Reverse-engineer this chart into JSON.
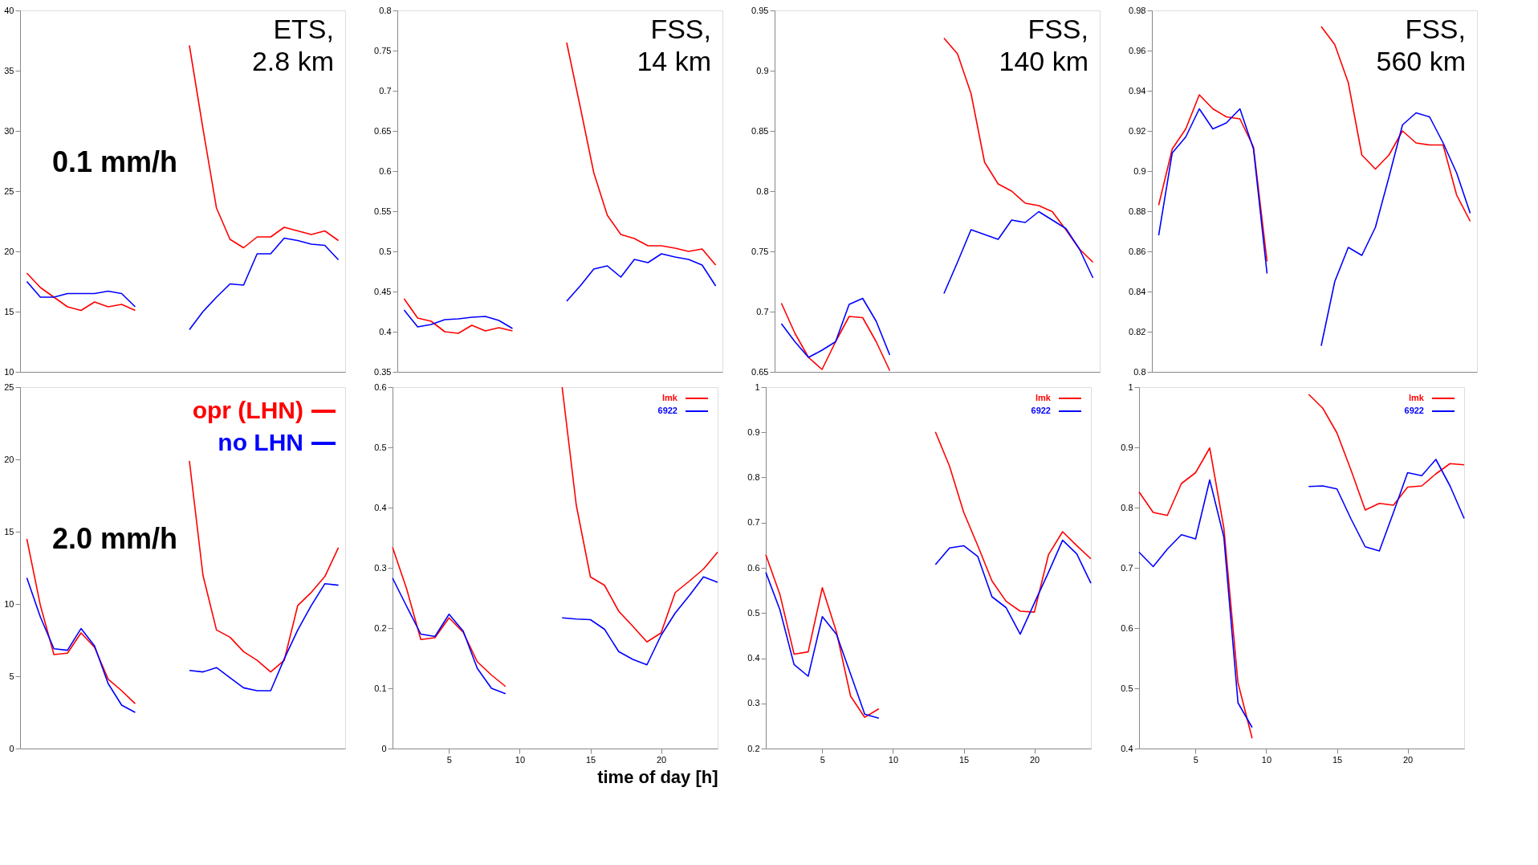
{
  "chart_data": [
    {
      "type": "line",
      "title": "ETS,\n2.8 km",
      "annotations": [
        "0.1 mm/h"
      ],
      "categories": [
        null,
        null,
        null,
        null,
        null,
        null,
        null,
        null,
        null,
        null,
        null,
        null,
        null,
        null,
        null,
        null,
        null,
        null,
        null,
        null,
        null,
        null,
        null,
        null
      ],
      "ylim": [
        10,
        40
      ],
      "yticks": [
        10,
        15,
        20,
        25,
        30,
        35,
        40
      ],
      "tick_labels": "y",
      "grid": false,
      "legend": false,
      "series": [
        {
          "color": "#ff0000",
          "values": [
            18.2,
            17.0,
            16.2,
            15.4,
            15.1,
            15.8,
            15.4,
            15.6,
            15.1,
            null,
            null,
            null,
            null,
            null,
            null,
            null,
            null,
            null,
            null,
            null,
            null,
            null,
            null,
            null
          ]
        },
        {
          "color": "#ff0000",
          "values": [
            null,
            null,
            null,
            null,
            null,
            null,
            null,
            null,
            null,
            null,
            null,
            null,
            37.1,
            30.2,
            23.6,
            21.0,
            20.3,
            21.2,
            21.2,
            22.0,
            21.7,
            21.4,
            21.7,
            20.9
          ]
        },
        {
          "color": "#0000ff",
          "values": [
            17.5,
            16.2,
            16.2,
            16.5,
            16.5,
            16.5,
            16.7,
            16.5,
            15.4,
            null,
            null,
            null,
            null,
            null,
            null,
            null,
            null,
            null,
            null,
            null,
            null,
            null,
            null,
            null
          ]
        },
        {
          "color": "#0000ff",
          "values": [
            null,
            null,
            null,
            null,
            null,
            null,
            null,
            null,
            null,
            null,
            null,
            null,
            13.5,
            15.0,
            16.2,
            17.3,
            17.2,
            19.8,
            19.8,
            21.1,
            20.9,
            20.6,
            20.5,
            19.3
          ]
        }
      ]
    },
    {
      "type": "line",
      "title": "FSS,\n14 km",
      "categories": [
        null,
        null,
        null,
        null,
        null,
        null,
        null,
        null,
        null,
        null,
        null,
        null,
        null,
        null,
        null,
        null,
        null,
        null,
        null,
        null,
        null,
        null,
        null,
        null
      ],
      "ylim": [
        0.35,
        0.8
      ],
      "yticks": [
        0.35,
        0.4,
        0.45,
        0.5,
        0.55,
        0.6,
        0.65,
        0.7,
        0.75,
        0.8
      ],
      "tick_labels": "y",
      "grid": false,
      "legend": false,
      "series": [
        {
          "color": "#ff0000",
          "values": [
            0.441,
            0.417,
            0.413,
            0.4,
            0.398,
            0.408,
            0.401,
            0.405,
            0.401,
            null,
            null,
            null,
            null,
            null,
            null,
            null,
            null,
            null,
            null,
            null,
            null,
            null,
            null,
            null
          ]
        },
        {
          "color": "#ff0000",
          "values": [
            null,
            null,
            null,
            null,
            null,
            null,
            null,
            null,
            null,
            null,
            null,
            null,
            0.76,
            0.68,
            0.598,
            0.545,
            0.521,
            0.516,
            0.507,
            0.507,
            0.504,
            0.5,
            0.503,
            0.483
          ]
        },
        {
          "color": "#0000ff",
          "values": [
            0.427,
            0.406,
            0.409,
            0.415,
            0.416,
            0.418,
            0.419,
            0.414,
            0.404,
            null,
            null,
            null,
            null,
            null,
            null,
            null,
            null,
            null,
            null,
            null,
            null,
            null,
            null,
            null
          ]
        },
        {
          "color": "#0000ff",
          "values": [
            null,
            null,
            null,
            null,
            null,
            null,
            null,
            null,
            null,
            null,
            null,
            null,
            0.438,
            0.457,
            0.478,
            0.482,
            0.468,
            0.49,
            0.486,
            0.497,
            0.493,
            0.49,
            0.483,
            0.457
          ]
        }
      ]
    },
    {
      "type": "line",
      "title": "FSS,\n140 km",
      "categories": [
        null,
        null,
        null,
        null,
        null,
        null,
        null,
        null,
        null,
        null,
        null,
        null,
        null,
        null,
        null,
        null,
        null,
        null,
        null,
        null,
        null,
        null,
        null,
        null
      ],
      "ylim": [
        0.65,
        0.95
      ],
      "yticks": [
        0.65,
        0.7,
        0.75,
        0.8,
        0.85,
        0.9,
        0.95
      ],
      "tick_labels": "y",
      "grid": false,
      "legend": false,
      "series": [
        {
          "color": "#ff0000",
          "values": [
            0.707,
            0.682,
            0.662,
            0.652,
            0.675,
            0.696,
            0.695,
            0.675,
            0.651,
            null,
            null,
            null,
            null,
            null,
            null,
            null,
            null,
            null,
            null,
            null,
            null,
            null,
            null,
            null
          ]
        },
        {
          "color": "#ff0000",
          "values": [
            null,
            null,
            null,
            null,
            null,
            null,
            null,
            null,
            null,
            null,
            null,
            null,
            0.927,
            0.914,
            0.881,
            0.824,
            0.806,
            0.8,
            0.79,
            0.788,
            0.783,
            0.768,
            0.752,
            0.741
          ]
        },
        {
          "color": "#0000ff",
          "values": [
            0.69,
            0.675,
            0.662,
            0.668,
            0.675,
            0.706,
            0.711,
            0.692,
            0.664,
            null,
            null,
            null,
            null,
            null,
            null,
            null,
            null,
            null,
            null,
            null,
            null,
            null,
            null,
            null
          ]
        },
        {
          "color": "#0000ff",
          "values": [
            null,
            null,
            null,
            null,
            null,
            null,
            null,
            null,
            null,
            null,
            null,
            null,
            0.715,
            0.741,
            0.768,
            0.764,
            0.76,
            0.776,
            0.774,
            0.783,
            0.776,
            0.769,
            0.752,
            0.728
          ]
        }
      ]
    },
    {
      "type": "line",
      "title": "FSS,\n560 km",
      "categories": [
        null,
        null,
        null,
        null,
        null,
        null,
        null,
        null,
        null,
        null,
        null,
        null,
        null,
        null,
        null,
        null,
        null,
        null,
        null,
        null,
        null,
        null,
        null,
        null
      ],
      "ylim": [
        0.8,
        0.98
      ],
      "yticks": [
        0.8,
        0.82,
        0.84,
        0.86,
        0.88,
        0.9,
        0.92,
        0.94,
        0.96,
        0.98
      ],
      "tick_labels": "y",
      "grid": false,
      "legend": false,
      "series": [
        {
          "color": "#ff0000",
          "values": [
            0.883,
            0.911,
            0.921,
            0.938,
            0.931,
            0.927,
            0.926,
            0.912,
            0.855,
            null,
            null,
            null,
            null,
            null,
            null,
            null,
            null,
            null,
            null,
            null,
            null,
            null,
            null,
            null
          ]
        },
        {
          "color": "#ff0000",
          "values": [
            null,
            null,
            null,
            null,
            null,
            null,
            null,
            null,
            null,
            null,
            null,
            null,
            0.972,
            0.963,
            0.944,
            0.908,
            0.901,
            0.908,
            0.92,
            0.914,
            0.913,
            0.913,
            0.888,
            0.875
          ]
        },
        {
          "color": "#0000ff",
          "values": [
            0.868,
            0.909,
            0.917,
            0.931,
            0.921,
            0.924,
            0.931,
            0.911,
            0.849,
            null,
            null,
            null,
            null,
            null,
            null,
            null,
            null,
            null,
            null,
            null,
            null,
            null,
            null,
            null
          ]
        },
        {
          "color": "#0000ff",
          "values": [
            null,
            null,
            null,
            null,
            null,
            null,
            null,
            null,
            null,
            null,
            null,
            null,
            0.813,
            0.845,
            0.862,
            0.858,
            0.872,
            0.897,
            0.923,
            0.929,
            0.927,
            0.914,
            0.899,
            0.879
          ]
        }
      ]
    },
    {
      "type": "line",
      "annotations": [
        "2.0 mm/h"
      ],
      "categories": [
        null,
        null,
        null,
        null,
        null,
        null,
        null,
        null,
        null,
        null,
        null,
        null,
        null,
        null,
        null,
        null,
        null,
        null,
        null,
        null,
        null,
        null,
        null,
        null
      ],
      "ylim": [
        0,
        25
      ],
      "yticks": [
        0,
        5,
        10,
        15,
        20,
        25
      ],
      "tick_labels": "y",
      "grid": false,
      "legend": "top right",
      "series": [
        {
          "name": "opr (LHN)",
          "color": "#ff0000",
          "values": [
            14.5,
            9.9,
            6.5,
            6.6,
            8.0,
            7.0,
            4.8,
            4.0,
            3.1,
            null,
            null,
            null,
            null,
            null,
            null,
            null,
            null,
            null,
            null,
            null,
            null,
            null,
            null,
            null
          ]
        },
        {
          "color": "#ff0000",
          "values": [
            null,
            null,
            null,
            null,
            null,
            null,
            null,
            null,
            null,
            null,
            null,
            null,
            19.9,
            12.0,
            8.2,
            7.7,
            6.7,
            6.1,
            5.3,
            6.1,
            9.9,
            10.8,
            11.9,
            13.9
          ]
        },
        {
          "name": "no LHN",
          "color": "#0000ff",
          "values": [
            11.8,
            9.1,
            6.9,
            6.8,
            8.3,
            7.1,
            4.5,
            3.0,
            2.5,
            null,
            null,
            null,
            null,
            null,
            null,
            null,
            null,
            null,
            null,
            null,
            null,
            null,
            null,
            null
          ]
        },
        {
          "color": "#0000ff",
          "values": [
            null,
            null,
            null,
            null,
            null,
            null,
            null,
            null,
            null,
            null,
            null,
            null,
            5.4,
            5.3,
            5.6,
            4.9,
            4.2,
            4.0,
            4.0,
            6.2,
            8.2,
            9.9,
            11.4,
            11.3
          ]
        }
      ]
    },
    {
      "type": "line",
      "xlabel": "time of day [h]",
      "x": [
        1,
        2,
        3,
        4,
        5,
        6,
        7,
        8,
        9,
        10,
        11,
        12,
        13,
        14,
        15,
        16,
        17,
        18,
        19,
        20,
        21,
        22,
        23,
        24
      ],
      "xlim": [
        1,
        24
      ],
      "xticks": [
        5,
        10,
        15,
        20
      ],
      "ylim": [
        0,
        0.6
      ],
      "yticks": [
        0,
        0.1,
        0.2,
        0.3,
        0.4,
        0.5,
        0.6
      ],
      "grid": false,
      "legend": "top right",
      "series": [
        {
          "name": "lmk",
          "color": "#ff0000",
          "values": [
            0.334,
            0.265,
            0.181,
            0.184,
            0.217,
            0.193,
            0.144,
            0.122,
            0.103,
            null,
            null,
            null,
            0.6,
            0.404,
            0.285,
            0.271,
            0.228,
            0.203,
            0.177,
            0.192,
            0.259,
            0.278,
            0.298,
            0.326
          ]
        },
        {
          "name": "6922",
          "color": "#0000ff",
          "values": [
            0.283,
            0.236,
            0.19,
            0.186,
            0.223,
            0.195,
            0.133,
            0.1,
            0.091,
            null,
            null,
            null,
            0.217,
            0.215,
            0.214,
            0.198,
            0.161,
            0.148,
            0.139,
            0.188,
            0.225,
            0.254,
            0.285,
            0.276
          ]
        }
      ]
    },
    {
      "type": "line",
      "x": [
        1,
        2,
        3,
        4,
        5,
        6,
        7,
        8,
        9,
        10,
        11,
        12,
        13,
        14,
        15,
        16,
        17,
        18,
        19,
        20,
        21,
        22,
        23,
        24
      ],
      "xlim": [
        1,
        24
      ],
      "xticks": [
        5,
        10,
        15,
        20
      ],
      "ylim": [
        0.2,
        1
      ],
      "yticks": [
        0.2,
        0.3,
        0.4,
        0.5,
        0.6,
        0.7,
        0.8,
        0.9,
        1
      ],
      "grid": false,
      "legend": "top right",
      "series": [
        {
          "name": "lmk",
          "color": "#ff0000",
          "values": [
            0.629,
            0.541,
            0.409,
            0.414,
            0.556,
            0.458,
            0.316,
            0.269,
            0.288,
            null,
            null,
            null,
            0.901,
            0.825,
            0.723,
            0.649,
            0.571,
            0.526,
            0.504,
            0.502,
            0.629,
            0.68,
            0.649,
            0.62
          ]
        },
        {
          "name": "6922",
          "color": "#0000ff",
          "values": [
            0.59,
            0.507,
            0.386,
            0.36,
            0.492,
            0.453,
            0.365,
            0.276,
            0.267,
            null,
            null,
            null,
            0.607,
            0.644,
            0.649,
            0.625,
            0.536,
            0.512,
            0.453,
            0.522,
            0.59,
            0.661,
            0.631,
            0.566
          ]
        }
      ]
    },
    {
      "type": "line",
      "x": [
        1,
        2,
        3,
        4,
        5,
        6,
        7,
        8,
        9,
        10,
        11,
        12,
        13,
        14,
        15,
        16,
        17,
        18,
        19,
        20,
        21,
        22,
        23,
        24
      ],
      "xlim": [
        1,
        24
      ],
      "xticks": [
        5,
        10,
        15,
        20
      ],
      "ylim": [
        0.4,
        1
      ],
      "yticks": [
        0.4,
        0.5,
        0.6,
        0.7,
        0.8,
        0.9,
        1
      ],
      "grid": false,
      "legend": "top right",
      "series": [
        {
          "name": "lmk",
          "color": "#ff0000",
          "values": [
            0.826,
            0.792,
            0.787,
            0.84,
            0.858,
            0.899,
            0.766,
            0.509,
            0.417,
            null,
            null,
            null,
            0.988,
            0.965,
            0.924,
            0.862,
            0.796,
            0.807,
            0.804,
            0.834,
            0.836,
            0.856,
            0.873,
            0.871
          ]
        },
        {
          "name": "6922",
          "color": "#0000ff",
          "values": [
            0.726,
            0.702,
            0.731,
            0.755,
            0.748,
            0.846,
            0.751,
            0.476,
            0.435,
            null,
            null,
            null,
            0.835,
            0.836,
            0.831,
            0.781,
            0.735,
            0.728,
            0.792,
            0.858,
            0.853,
            0.88,
            0.836,
            0.782
          ]
        }
      ]
    }
  ]
}
